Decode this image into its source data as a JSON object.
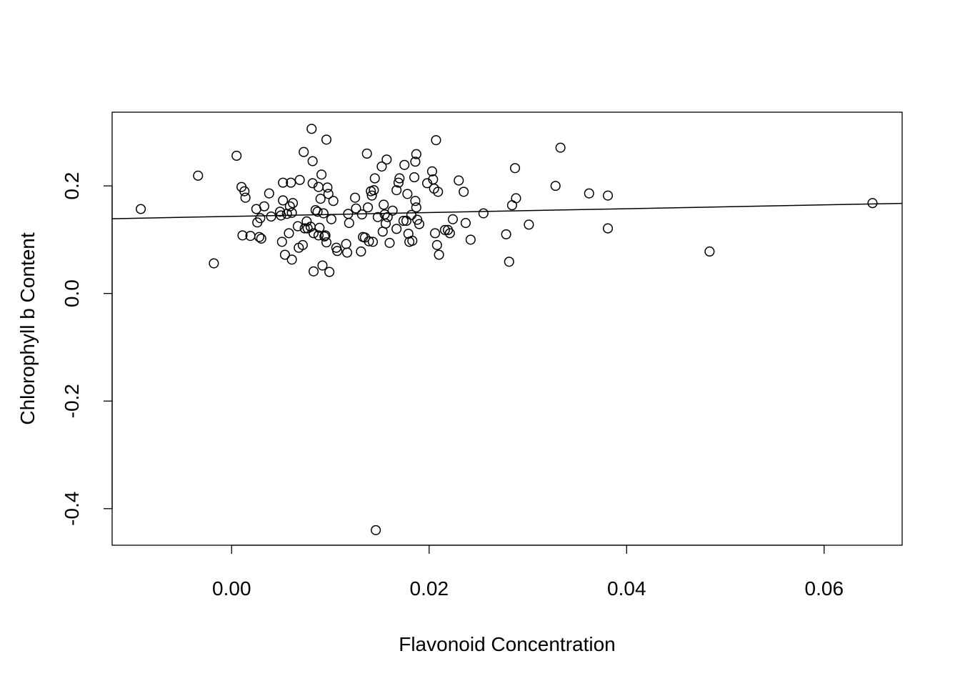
{
  "chart_data": {
    "type": "scatter",
    "title": "",
    "xlabel": "Flavonoid Concentration",
    "ylabel": "Chlorophyll b Content",
    "xlim": [
      -0.0121,
      0.0679
    ],
    "ylim": [
      -0.468,
      0.337
    ],
    "x_ticks": [
      0.0,
      0.02,
      0.04,
      0.06
    ],
    "x_tick_labels": [
      "0.00",
      "0.02",
      "0.04",
      "0.06"
    ],
    "y_ticks": [
      -0.4,
      -0.2,
      0.0,
      0.2
    ],
    "y_tick_labels": [
      "-0.4",
      "-0.2",
      "0.0",
      "0.2"
    ],
    "grid": false,
    "regression_line": {
      "intercept": 0.1433,
      "slope": 0.3569
    },
    "points": [
      [
        -0.0092,
        0.157
      ],
      [
        -0.0034,
        0.219
      ],
      [
        -0.0018,
        0.056
      ],
      [
        0.0005,
        0.256
      ],
      [
        0.001,
        0.198
      ],
      [
        0.0011,
        0.108
      ],
      [
        0.0013,
        0.19
      ],
      [
        0.0014,
        0.178
      ],
      [
        0.0019,
        0.107
      ],
      [
        0.0025,
        0.157
      ],
      [
        0.0026,
        0.132
      ],
      [
        0.0028,
        0.105
      ],
      [
        0.0029,
        0.14
      ],
      [
        0.003,
        0.102
      ],
      [
        0.0033,
        0.162
      ],
      [
        0.0038,
        0.186
      ],
      [
        0.004,
        0.143
      ],
      [
        0.0049,
        0.152
      ],
      [
        0.005,
        0.145
      ],
      [
        0.0051,
        0.096
      ],
      [
        0.0052,
        0.173
      ],
      [
        0.0052,
        0.206
      ],
      [
        0.0054,
        0.072
      ],
      [
        0.0056,
        0.148
      ],
      [
        0.0058,
        0.112
      ],
      [
        0.0059,
        0.162
      ],
      [
        0.006,
        0.206
      ],
      [
        0.0061,
        0.15
      ],
      [
        0.0061,
        0.063
      ],
      [
        0.0062,
        0.168
      ],
      [
        0.0067,
        0.125
      ],
      [
        0.0068,
        0.085
      ],
      [
        0.0069,
        0.211
      ],
      [
        0.0072,
        0.09
      ],
      [
        0.0073,
        0.263
      ],
      [
        0.0074,
        0.121
      ],
      [
        0.0076,
        0.134
      ],
      [
        0.0077,
        0.121
      ],
      [
        0.008,
        0.124
      ],
      [
        0.0081,
        0.306
      ],
      [
        0.0082,
        0.205
      ],
      [
        0.0082,
        0.246
      ],
      [
        0.0083,
        0.041
      ],
      [
        0.0083,
        0.112
      ],
      [
        0.0085,
        0.155
      ],
      [
        0.0087,
        0.152
      ],
      [
        0.0088,
        0.198
      ],
      [
        0.0088,
        0.108
      ],
      [
        0.0089,
        0.122
      ],
      [
        0.009,
        0.176
      ],
      [
        0.0091,
        0.221
      ],
      [
        0.0092,
        0.052
      ],
      [
        0.0093,
        0.149
      ],
      [
        0.0094,
        0.106
      ],
      [
        0.0095,
        0.108
      ],
      [
        0.0096,
        0.286
      ],
      [
        0.0096,
        0.095
      ],
      [
        0.0097,
        0.197
      ],
      [
        0.0098,
        0.185
      ],
      [
        0.0099,
        0.04
      ],
      [
        0.0101,
        0.138
      ],
      [
        0.0103,
        0.172
      ],
      [
        0.0106,
        0.085
      ],
      [
        0.0107,
        0.079
      ],
      [
        0.0116,
        0.092
      ],
      [
        0.0117,
        0.076
      ],
      [
        0.0118,
        0.148
      ],
      [
        0.0119,
        0.131
      ],
      [
        0.0125,
        0.178
      ],
      [
        0.0126,
        0.158
      ],
      [
        0.0131,
        0.078
      ],
      [
        0.0132,
        0.147
      ],
      [
        0.0133,
        0.105
      ],
      [
        0.0135,
        0.104
      ],
      [
        0.0137,
        0.26
      ],
      [
        0.0138,
        0.16
      ],
      [
        0.0139,
        0.097
      ],
      [
        0.0141,
        0.19
      ],
      [
        0.0142,
        0.182
      ],
      [
        0.0143,
        0.096
      ],
      [
        0.0144,
        0.192
      ],
      [
        0.0145,
        0.214
      ],
      [
        0.0146,
        -0.44
      ],
      [
        0.0148,
        0.142
      ],
      [
        0.0152,
        0.236
      ],
      [
        0.0153,
        0.115
      ],
      [
        0.0154,
        0.165
      ],
      [
        0.0155,
        0.147
      ],
      [
        0.0156,
        0.13
      ],
      [
        0.0157,
        0.249
      ],
      [
        0.0158,
        0.142
      ],
      [
        0.016,
        0.094
      ],
      [
        0.0163,
        0.154
      ],
      [
        0.0167,
        0.12
      ],
      [
        0.0167,
        0.192
      ],
      [
        0.0169,
        0.206
      ],
      [
        0.017,
        0.214
      ],
      [
        0.0174,
        0.135
      ],
      [
        0.0175,
        0.239
      ],
      [
        0.0177,
        0.135
      ],
      [
        0.0178,
        0.185
      ],
      [
        0.0179,
        0.111
      ],
      [
        0.018,
        0.096
      ],
      [
        0.0182,
        0.146
      ],
      [
        0.0183,
        0.098
      ],
      [
        0.0185,
        0.216
      ],
      [
        0.0186,
        0.245
      ],
      [
        0.0186,
        0.172
      ],
      [
        0.0187,
        0.16
      ],
      [
        0.0187,
        0.259
      ],
      [
        0.0188,
        0.137
      ],
      [
        0.019,
        0.129
      ],
      [
        0.0198,
        0.205
      ],
      [
        0.0203,
        0.227
      ],
      [
        0.0204,
        0.212
      ],
      [
        0.0205,
        0.195
      ],
      [
        0.0206,
        0.112
      ],
      [
        0.0207,
        0.285
      ],
      [
        0.0208,
        0.09
      ],
      [
        0.0209,
        0.189
      ],
      [
        0.021,
        0.072
      ],
      [
        0.0216,
        0.118
      ],
      [
        0.0219,
        0.118
      ],
      [
        0.0221,
        0.112
      ],
      [
        0.0224,
        0.138
      ],
      [
        0.023,
        0.21
      ],
      [
        0.0235,
        0.189
      ],
      [
        0.0237,
        0.131
      ],
      [
        0.0242,
        0.1
      ],
      [
        0.0255,
        0.149
      ],
      [
        0.0278,
        0.11
      ],
      [
        0.0281,
        0.059
      ],
      [
        0.0284,
        0.164
      ],
      [
        0.0287,
        0.233
      ],
      [
        0.0288,
        0.177
      ],
      [
        0.0301,
        0.128
      ],
      [
        0.0328,
        0.2
      ],
      [
        0.0333,
        0.271
      ],
      [
        0.0362,
        0.186
      ],
      [
        0.0381,
        0.182
      ],
      [
        0.0381,
        0.121
      ],
      [
        0.0484,
        0.078
      ],
      [
        0.0649,
        0.168
      ]
    ]
  }
}
